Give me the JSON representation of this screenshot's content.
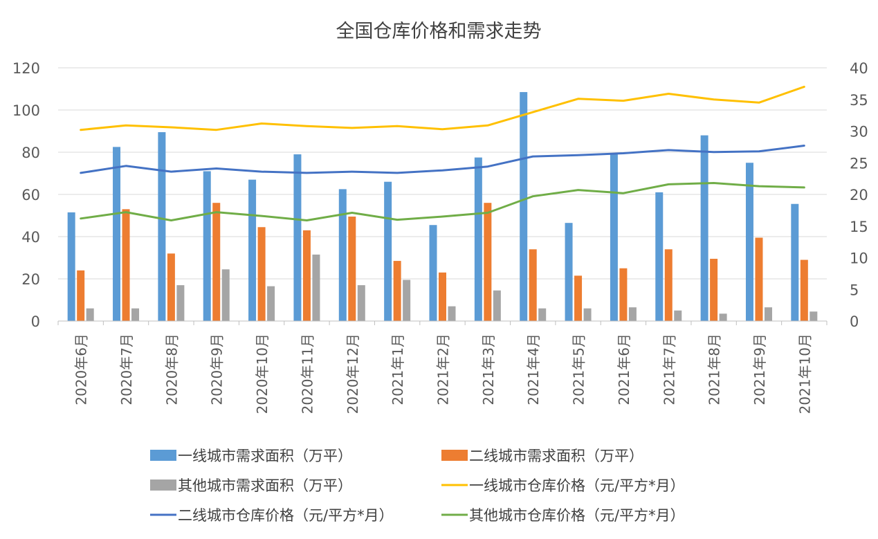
{
  "chart_data": {
    "type": "bar",
    "title": "全国仓库价格和需求走势",
    "categories": [
      "2020年6月",
      "2020年7月",
      "2020年8月",
      "2020年9月",
      "2020年10月",
      "2020年11月",
      "2020年12月",
      "2021年1月",
      "2021年2月",
      "2021年3月",
      "2021年4月",
      "2021年5月",
      "2021年6月",
      "2021年7月",
      "2021年8月",
      "2021年9月",
      "2021年10月"
    ],
    "ylim": [
      0,
      120
    ],
    "y_ticks": [
      "0",
      "20",
      "40",
      "60",
      "80",
      "100",
      "120"
    ],
    "y2lim": [
      0,
      40
    ],
    "y2_ticks": [
      "0",
      "5",
      "10",
      "15",
      "20",
      "25",
      "30",
      "35",
      "40"
    ],
    "grid": true,
    "legend_position": "bottom",
    "bar_series": [
      {
        "name": "一线城市需求面积（万平）",
        "color": "#5B9BD5",
        "axis": "left",
        "values": [
          51.5,
          82.5,
          89.5,
          71,
          67,
          79,
          62.5,
          66,
          45.5,
          77.5,
          108.5,
          46.5,
          79,
          61,
          88,
          75,
          55.5
        ]
      },
      {
        "name": "二线城市需求面积（万平）",
        "color": "#ED7D31",
        "axis": "left",
        "values": [
          24,
          53,
          32,
          56,
          44.5,
          43,
          49.5,
          28.5,
          23,
          56,
          34,
          21.5,
          25,
          34,
          29.5,
          39.5,
          29
        ]
      },
      {
        "name": "其他城市需求面积（万平）",
        "color": "#A5A5A5",
        "axis": "left",
        "values": [
          6,
          6,
          17,
          24.5,
          16.5,
          31.5,
          17,
          19.5,
          7,
          14.5,
          6,
          6,
          6.5,
          5,
          3.5,
          6.5,
          4.5
        ]
      }
    ],
    "line_series": [
      {
        "name": "一线城市仓库价格（元/平方*月）",
        "color": "#FFC000",
        "axis": "right",
        "values": [
          30.2,
          30.9,
          30.6,
          30.2,
          31.2,
          30.8,
          30.5,
          30.8,
          30.3,
          30.9,
          33.0,
          35.1,
          34.8,
          35.9,
          35.0,
          34.5,
          37.0
        ]
      },
      {
        "name": "二线城市仓库价格（元/平方*月）",
        "color": "#4472C4",
        "axis": "right",
        "values": [
          23.4,
          24.5,
          23.6,
          24.1,
          23.6,
          23.4,
          23.6,
          23.4,
          23.8,
          24.4,
          26.0,
          26.2,
          26.5,
          27.0,
          26.7,
          26.8,
          27.7
        ]
      },
      {
        "name": "其他城市仓库价格（元/平方*月）",
        "color": "#70AD47",
        "axis": "right",
        "values": [
          16.2,
          17.2,
          15.9,
          17.2,
          16.6,
          15.9,
          17.1,
          16.0,
          16.5,
          17.1,
          19.7,
          20.7,
          20.2,
          21.6,
          21.8,
          21.3,
          21.1
        ]
      }
    ]
  }
}
